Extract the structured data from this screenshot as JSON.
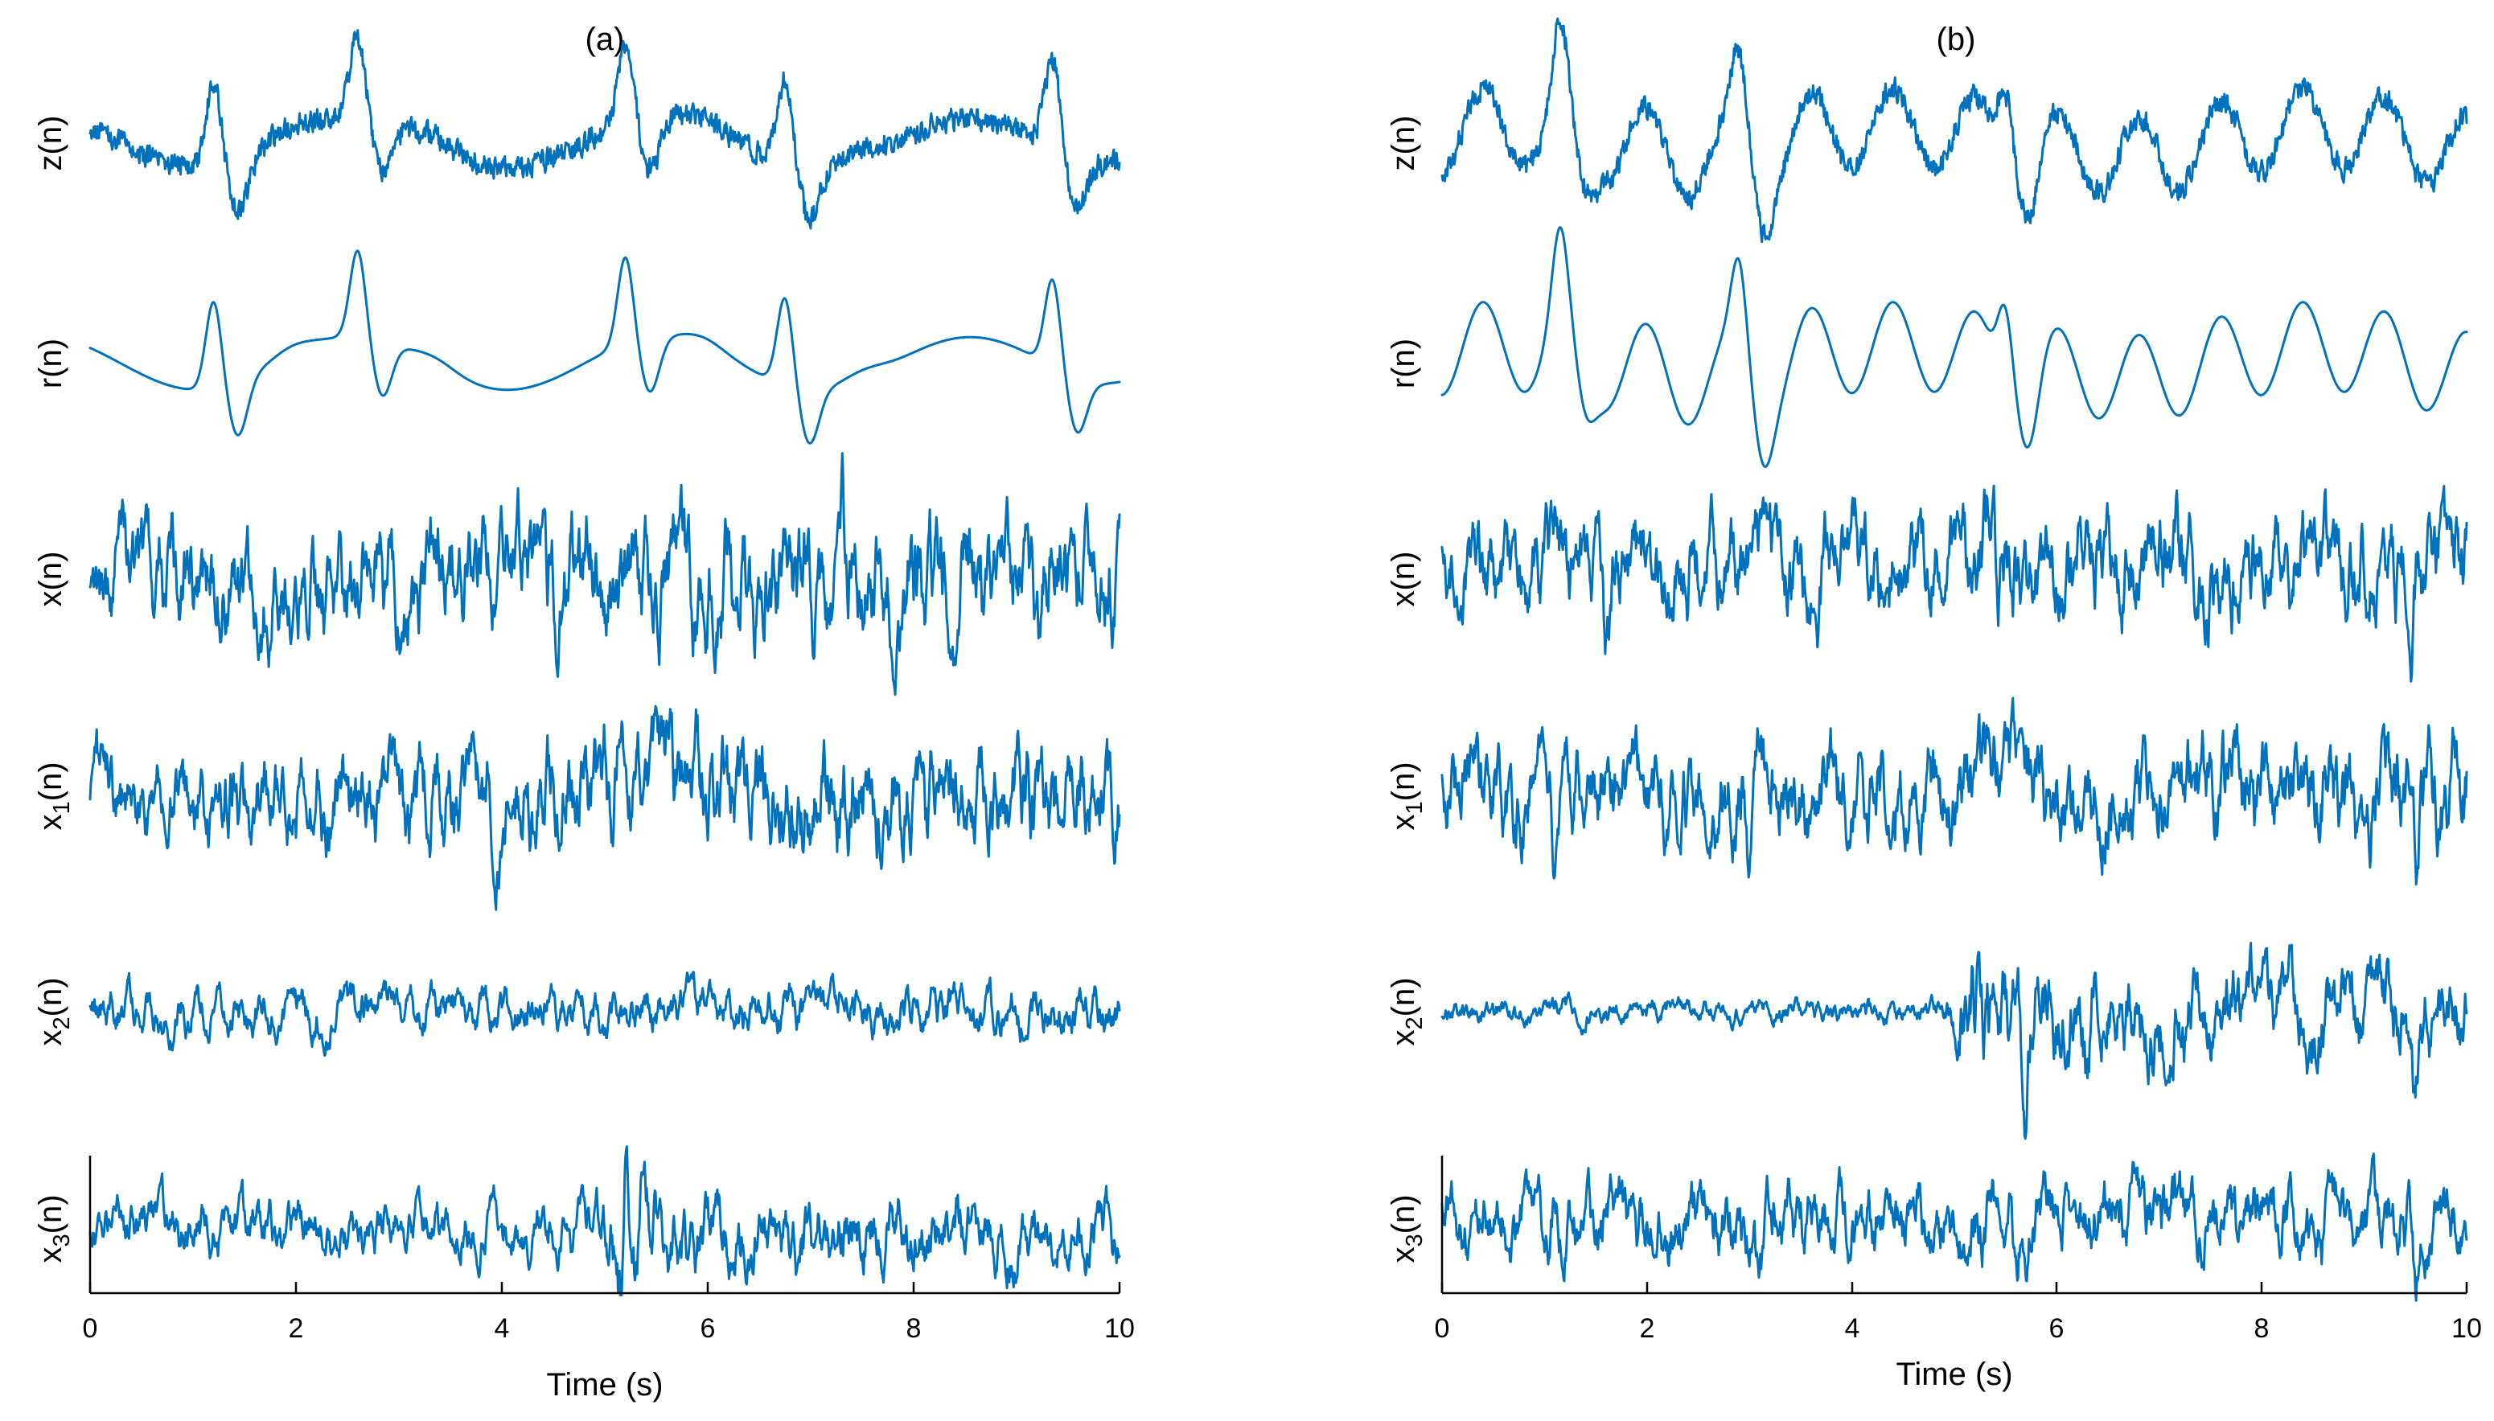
{
  "chart_data": [
    {
      "type": "line",
      "title": "(a)",
      "xlabel": "Time (s)",
      "xlim": [
        0,
        10
      ],
      "xticks": [
        0,
        2,
        4,
        6,
        8,
        10
      ],
      "line_color": "#0072BD",
      "series": [
        {
          "name": "z(n)",
          "base": "z",
          "sub": "",
          "tail": "(n)",
          "kind": "ecg_noisy",
          "amp": 0.9,
          "noise": 0.14,
          "beats": [
            1.2,
            2.6,
            5.2,
            6.75,
            9.35
          ],
          "wave": [
            [
              1.8,
              3.0,
              0.3
            ]
          ]
        },
        {
          "name": "r(n)",
          "base": "r",
          "sub": "",
          "tail": "(n)",
          "kind": "ecg_smooth",
          "amp": 0.95,
          "noise": 0.0,
          "beats": [
            1.2,
            2.6,
            5.2,
            6.75,
            9.35
          ],
          "wave": [
            [
              1.8,
              3.0,
              0.3
            ]
          ]
        },
        {
          "name": "x(n)",
          "base": "x",
          "sub": "",
          "tail": "(n)",
          "kind": "noise",
          "amp": 0.85,
          "envelope": [
            [
              0,
              0.85
            ],
            [
              4.5,
              0.95
            ],
            [
              6.5,
              1.05
            ],
            [
              10,
              0.9
            ]
          ],
          "spikes": [
            [
              7.3,
              1.2
            ]
          ]
        },
        {
          "name": "x1(n)",
          "base": "x",
          "sub": "1",
          "tail": "(n)",
          "kind": "noise",
          "amp": 0.8,
          "envelope": [
            [
              0,
              0.75
            ],
            [
              5,
              1.0
            ],
            [
              10,
              0.95
            ]
          ],
          "spikes": [
            [
              5.15,
              1.2
            ]
          ]
        },
        {
          "name": "x2(n)",
          "base": "x",
          "sub": "2",
          "tail": "(n)",
          "kind": "noise",
          "amp": 0.35,
          "envelope": [
            [
              0,
              0.9
            ],
            [
              10,
              0.95
            ]
          ],
          "spikes": []
        },
        {
          "name": "x3(n)",
          "base": "x",
          "sub": "3",
          "tail": "(n)",
          "kind": "noise",
          "amp": 0.45,
          "envelope": [
            [
              0,
              0.8
            ],
            [
              4.9,
              0.8
            ],
            [
              5.2,
              1.9
            ],
            [
              5.6,
              1.2
            ],
            [
              10,
              1.0
            ]
          ],
          "spikes": [
            [
              5.15,
              -1.6
            ],
            [
              5.22,
              1.5
            ]
          ]
        }
      ]
    },
    {
      "type": "line",
      "title": "(b)",
      "xlabel": "Time (s)",
      "xlim": [
        0,
        10
      ],
      "xticks": [
        0,
        2,
        4,
        6,
        8,
        10
      ],
      "line_color": "#0072BD",
      "series": [
        {
          "name": "z(n)",
          "base": "z",
          "sub": "",
          "tail": "(n)",
          "kind": "ecg_noisy",
          "amp": 0.85,
          "noise": 0.14,
          "beats": [
            1.15,
            2.9,
            5.5
          ],
          "wave": [
            [
              6.2,
              0.8,
              -0.5
            ],
            [
              7.5,
              4.0,
              0.2
            ]
          ]
        },
        {
          "name": "r(n)",
          "base": "r",
          "sub": "",
          "tail": "(n)",
          "kind": "ecg_smooth",
          "amp": 0.95,
          "noise": 0.0,
          "beats": [
            1.15,
            2.9,
            5.5
          ],
          "wave": [
            [
              6.2,
              0.8,
              -0.5
            ],
            [
              7.5,
              4.0,
              0.2
            ]
          ]
        },
        {
          "name": "x(n)",
          "base": "x",
          "sub": "",
          "tail": "(n)",
          "kind": "noise",
          "amp": 0.8,
          "envelope": [
            [
              0,
              0.85
            ],
            [
              10,
              0.9
            ]
          ],
          "spikes": [
            [
              1.6,
              -1.3
            ],
            [
              9.45,
              -1.2
            ],
            [
              5.35,
              1.1
            ]
          ]
        },
        {
          "name": "x1(n)",
          "base": "x",
          "sub": "1",
          "tail": "(n)",
          "kind": "noise",
          "amp": 0.8,
          "envelope": [
            [
              0,
              0.85
            ],
            [
              10,
              0.95
            ]
          ],
          "spikes": [
            [
              1.1,
              -1.2
            ],
            [
              3.0,
              -1.2
            ],
            [
              9.5,
              -1.2
            ]
          ]
        },
        {
          "name": "x2(n)",
          "base": "x",
          "sub": "2",
          "tail": "(n)",
          "kind": "noise",
          "amp": 0.55,
          "envelope": [
            [
              0,
              0.3
            ],
            [
              4.9,
              0.3
            ],
            [
              5.1,
              1.4
            ],
            [
              6.2,
              1.2
            ],
            [
              10,
              1.0
            ]
          ],
          "spikes": [
            [
              5.7,
              -1.6
            ],
            [
              6.3,
              -1.3
            ],
            [
              9.5,
              -1.3
            ]
          ]
        },
        {
          "name": "x3(n)",
          "base": "x",
          "sub": "3",
          "tail": "(n)",
          "kind": "noise",
          "amp": 0.55,
          "envelope": [
            [
              0,
              0.9
            ],
            [
              10,
              0.95
            ]
          ],
          "spikes": [
            [
              3.1,
              -1.3
            ],
            [
              5.6,
              -1.1
            ],
            [
              9.5,
              -1.1
            ]
          ]
        }
      ]
    }
  ]
}
